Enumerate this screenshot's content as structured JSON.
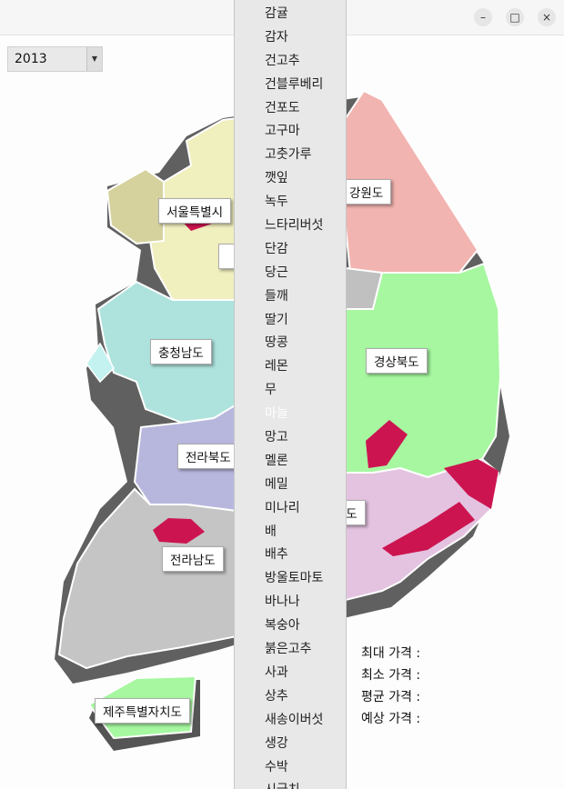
{
  "window": {
    "controls": {
      "minimize": "–",
      "maximize": "□",
      "close": "×"
    }
  },
  "year_select": {
    "value": "2013",
    "arrow": "▼"
  },
  "regions": {
    "seoul": "서울특별시",
    "gangwon": "강원도",
    "chungnam": "충청남도",
    "gyeongbuk": "경상북도",
    "jeonbuk": "전라북도",
    "gyeongnam": "경상남도",
    "jeonnam": "전라남도",
    "jeju": "제주특별자치도"
  },
  "stats": {
    "max_label": "최대 가격 :",
    "min_label": "최소 가격 :",
    "avg_label": "평균 가격 :",
    "pred_label": "예상 가격 :"
  },
  "dropdown": {
    "hover_index": 17,
    "items": [
      "감귤",
      "감자",
      "건고추",
      "건블루베리",
      "건포도",
      "고구마",
      "고춧가루",
      "깻잎",
      "녹두",
      "느타리버섯",
      "단감",
      "당근",
      "들깨",
      "딸기",
      "땅콩",
      "레몬",
      "무",
      "마늘",
      "망고",
      "멜론",
      "메밀",
      "미나리",
      "배",
      "배추",
      "방울토마토",
      "바나나",
      "복숭아",
      "붉은고추",
      "사과",
      "상추",
      "새송이버섯",
      "생강",
      "수박",
      "시금치"
    ]
  },
  "colors": {
    "gangwon": "#f2b4b0",
    "gyeongbuk": "#a6f7a0",
    "gyeongnam": "#e4c3e1",
    "chungnam": "#aee3dd",
    "jeonbuk": "#b7b7de",
    "jeonnam": "#c5c5c5",
    "gyeonggi": "#f0efbe",
    "highlight": "#cc1550"
  }
}
